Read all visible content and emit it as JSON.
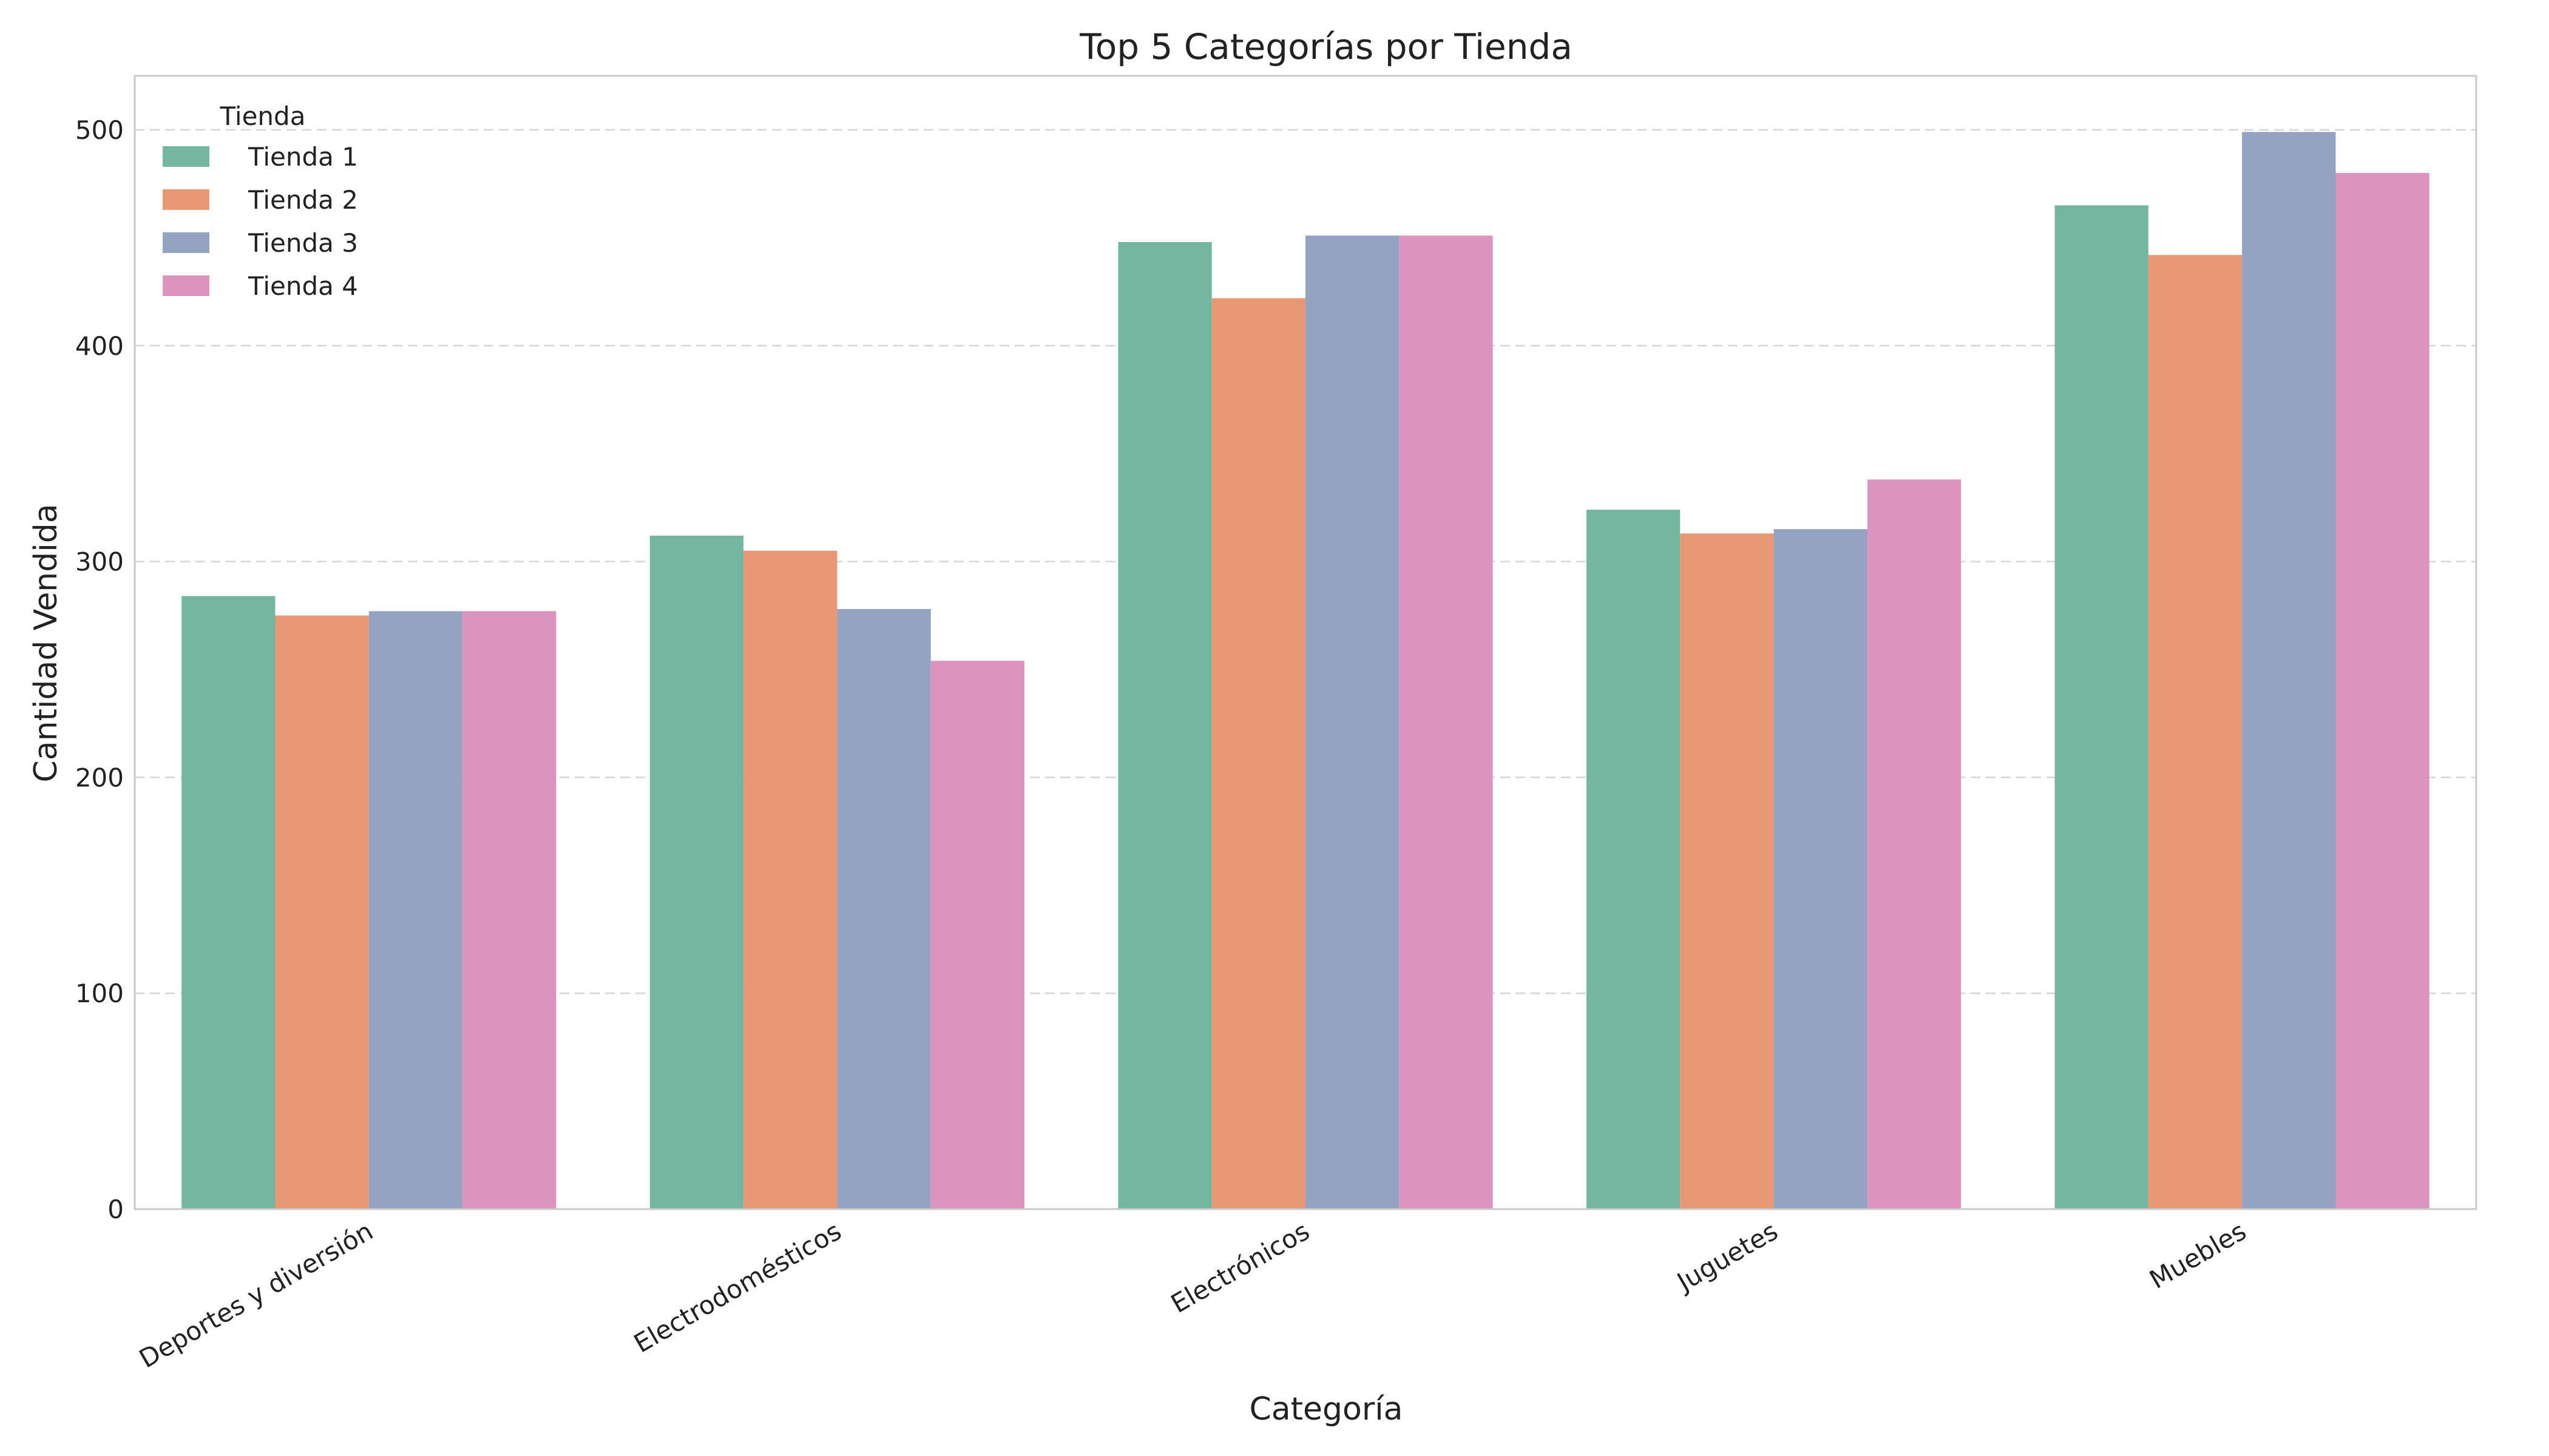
{
  "chart_data": {
    "type": "bar",
    "title": "Top 5 Categorías por Tienda",
    "xlabel": "Categoría",
    "ylabel": "Cantidad Vendida",
    "ylim": [
      0,
      525
    ],
    "yticks": [
      0,
      100,
      200,
      300,
      400,
      500
    ],
    "grid": "y",
    "categories": [
      "Deportes y diversión",
      "Electrodomésticos",
      "Electrónicos",
      "Juguetes",
      "Muebles"
    ],
    "legend": {
      "title": "Tienda",
      "placement": "top-left"
    },
    "series": [
      {
        "name": "Tienda 1",
        "color": "#74b6a0",
        "values": [
          284,
          312,
          448,
          324,
          465
        ]
      },
      {
        "name": "Tienda 2",
        "color": "#e89875",
        "values": [
          275,
          305,
          422,
          313,
          442
        ]
      },
      {
        "name": "Tienda 3",
        "color": "#94a3c2",
        "values": [
          277,
          278,
          451,
          315,
          499
        ]
      },
      {
        "name": "Tienda 4",
        "color": "#dc94bf",
        "values": [
          277,
          254,
          451,
          338,
          480
        ]
      }
    ]
  }
}
